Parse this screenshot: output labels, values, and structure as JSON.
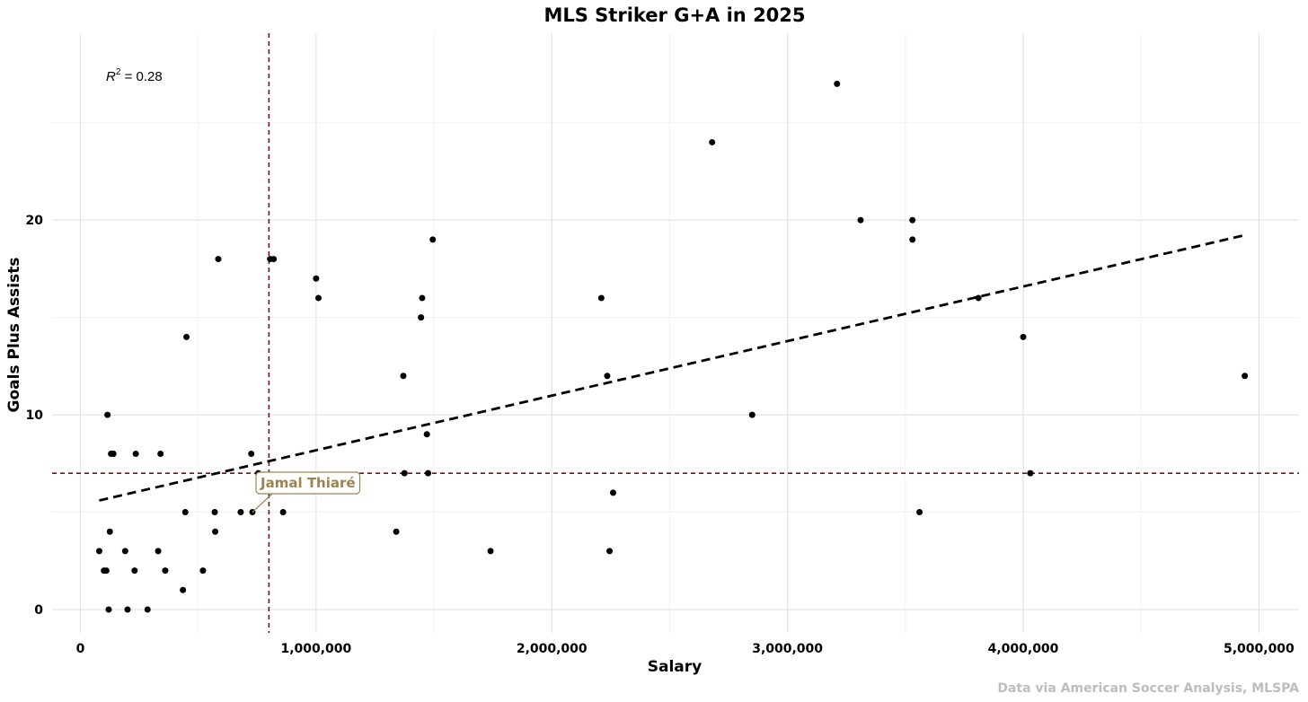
{
  "chart_data": {
    "type": "scatter",
    "title": "MLS Striker G+A in 2025",
    "xlabel": "Salary",
    "ylabel": "Goals Plus Assists",
    "caption": "Data via American Soccer Analysis, MLSPA",
    "xlim": [
      -120000,
      5170000
    ],
    "ylim": [
      -1.2,
      29.6
    ],
    "x_ticks": [
      0,
      1000000,
      2000000,
      3000000,
      4000000,
      5000000
    ],
    "x_tick_labels": [
      "0",
      "1,000,000",
      "2,000,000",
      "3,000,000",
      "4,000,000",
      "5,000,000"
    ],
    "x_minor_ticks": [
      500000,
      1500000,
      2500000,
      3500000,
      4500000
    ],
    "y_ticks": [
      0,
      10,
      20
    ],
    "y_tick_labels": [
      "0",
      "10",
      "20"
    ],
    "y_minor_ticks": [
      5,
      15,
      25
    ],
    "grid": true,
    "r2": {
      "label": "R",
      "sup": "2",
      "value": " = 0.28"
    },
    "trendline": {
      "x": [
        80000,
        4930000
      ],
      "y": [
        5.6,
        19.2
      ],
      "style": "dashed",
      "color": "#000000"
    },
    "median_lines": {
      "x": 800000,
      "y": 7,
      "color": "#6e1515"
    },
    "highlight": {
      "label": "Jamal Thiaré",
      "x": 730000,
      "y": 5,
      "color": "#9c8450"
    },
    "points": [
      {
        "x": 80000,
        "y": 3
      },
      {
        "x": 100000,
        "y": 2
      },
      {
        "x": 110000,
        "y": 2
      },
      {
        "x": 115000,
        "y": 10
      },
      {
        "x": 120000,
        "y": 0
      },
      {
        "x": 125000,
        "y": 4
      },
      {
        "x": 130000,
        "y": 8
      },
      {
        "x": 140000,
        "y": 8
      },
      {
        "x": 190000,
        "y": 3
      },
      {
        "x": 200000,
        "y": 0
      },
      {
        "x": 230000,
        "y": 2
      },
      {
        "x": 235000,
        "y": 8
      },
      {
        "x": 285000,
        "y": 0
      },
      {
        "x": 330000,
        "y": 3
      },
      {
        "x": 340000,
        "y": 8
      },
      {
        "x": 360000,
        "y": 2
      },
      {
        "x": 435000,
        "y": 1
      },
      {
        "x": 445000,
        "y": 5
      },
      {
        "x": 450000,
        "y": 14
      },
      {
        "x": 520000,
        "y": 2
      },
      {
        "x": 570000,
        "y": 5
      },
      {
        "x": 572000,
        "y": 4
      },
      {
        "x": 585000,
        "y": 18
      },
      {
        "x": 680000,
        "y": 5
      },
      {
        "x": 730000,
        "y": 5
      },
      {
        "x": 725000,
        "y": 8
      },
      {
        "x": 755000,
        "y": 7
      },
      {
        "x": 805000,
        "y": 18
      },
      {
        "x": 820000,
        "y": 18
      },
      {
        "x": 860000,
        "y": 5
      },
      {
        "x": 1000000,
        "y": 17
      },
      {
        "x": 1010000,
        "y": 16
      },
      {
        "x": 1340000,
        "y": 4
      },
      {
        "x": 1370000,
        "y": 12
      },
      {
        "x": 1375000,
        "y": 7
      },
      {
        "x": 1445000,
        "y": 15
      },
      {
        "x": 1450000,
        "y": 16
      },
      {
        "x": 1470000,
        "y": 9
      },
      {
        "x": 1475000,
        "y": 7
      },
      {
        "x": 1495000,
        "y": 19
      },
      {
        "x": 1740000,
        "y": 3
      },
      {
        "x": 2210000,
        "y": 16
      },
      {
        "x": 2235000,
        "y": 12
      },
      {
        "x": 2245000,
        "y": 3
      },
      {
        "x": 2260000,
        "y": 6
      },
      {
        "x": 2680000,
        "y": 24
      },
      {
        "x": 2850000,
        "y": 10
      },
      {
        "x": 3210000,
        "y": 27
      },
      {
        "x": 3310000,
        "y": 20
      },
      {
        "x": 3530000,
        "y": 20
      },
      {
        "x": 3530000,
        "y": 19
      },
      {
        "x": 3560000,
        "y": 5
      },
      {
        "x": 3810000,
        "y": 16
      },
      {
        "x": 4000000,
        "y": 14
      },
      {
        "x": 4030000,
        "y": 7
      },
      {
        "x": 4940000,
        "y": 12
      }
    ]
  }
}
